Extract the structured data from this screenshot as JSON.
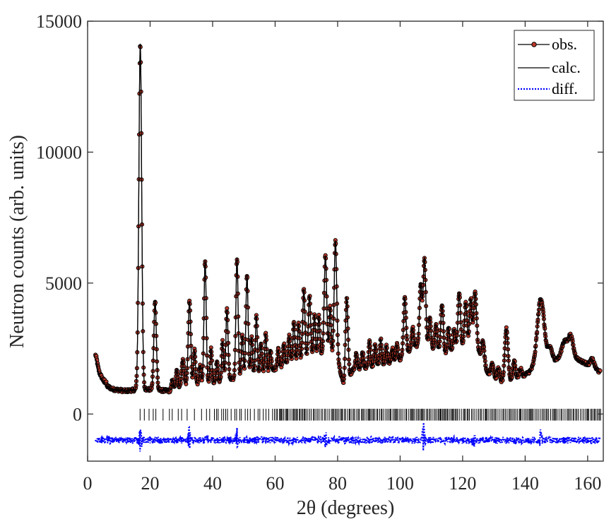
{
  "chart_data": {
    "type": "line",
    "title": "",
    "xlabel": "2θ (degrees)",
    "ylabel": "Neutron counts (arb. units)",
    "xlim": [
      0,
      165
    ],
    "ylim": [
      -1800,
      15000
    ],
    "x_ticks": [
      0,
      20,
      40,
      60,
      80,
      100,
      120,
      140,
      160
    ],
    "x_tick_labels": [
      "0",
      "20",
      "40",
      "60",
      "80",
      "100",
      "120",
      "140",
      "160"
    ],
    "y_ticks": [
      0,
      5000,
      10000,
      15000
    ],
    "y_tick_labels": [
      "0",
      "5000",
      "10000",
      "15000"
    ],
    "grid": false,
    "legend_position": "top-right",
    "background": [
      [
        2.5,
        1700
      ],
      [
        5,
        1150
      ],
      [
        8,
        950
      ],
      [
        12,
        880
      ],
      [
        15,
        920
      ],
      [
        18,
        950
      ],
      [
        22,
        920
      ],
      [
        26,
        880
      ],
      [
        30,
        1050
      ],
      [
        35,
        1150
      ],
      [
        40,
        1200
      ],
      [
        45,
        1300
      ],
      [
        50,
        1400
      ],
      [
        55,
        1500
      ],
      [
        60,
        1700
      ],
      [
        65,
        2000
      ],
      [
        70,
        2100
      ],
      [
        75,
        2300
      ],
      [
        80,
        2100
      ],
      [
        82,
        1050
      ],
      [
        85,
        1700
      ],
      [
        90,
        1800
      ],
      [
        95,
        1900
      ],
      [
        100,
        2100
      ],
      [
        105,
        2600
      ],
      [
        110,
        2500
      ],
      [
        115,
        2300
      ],
      [
        120,
        2600
      ],
      [
        125,
        2400
      ],
      [
        128,
        1600
      ],
      [
        132,
        1200
      ],
      [
        136,
        1300
      ],
      [
        140,
        1500
      ],
      [
        145,
        1900
      ],
      [
        150,
        2100
      ],
      [
        155,
        2200
      ],
      [
        160,
        1900
      ],
      [
        164,
        1600
      ]
    ],
    "peaks": [
      [
        2.6,
        400,
        0.5
      ],
      [
        16.85,
        13200,
        0.45
      ],
      [
        21.6,
        3400,
        0.4
      ],
      [
        27.2,
        400,
        0.3
      ],
      [
        28.6,
        700,
        0.3
      ],
      [
        30.5,
        1000,
        0.4
      ],
      [
        32.6,
        3200,
        0.4
      ],
      [
        34.2,
        1300,
        0.3
      ],
      [
        36.0,
        700,
        0.3
      ],
      [
        37.6,
        4700,
        0.35
      ],
      [
        39.5,
        1300,
        0.3
      ],
      [
        41.4,
        800,
        0.3
      ],
      [
        43.2,
        1500,
        0.3
      ],
      [
        44.6,
        2700,
        0.35
      ],
      [
        47.8,
        4600,
        0.35
      ],
      [
        49.5,
        1600,
        0.3
      ],
      [
        51.0,
        3900,
        0.35
      ],
      [
        52.5,
        1500,
        0.3
      ],
      [
        54.0,
        2300,
        0.3
      ],
      [
        55.5,
        1200,
        0.3
      ],
      [
        57.0,
        1500,
        0.3
      ],
      [
        58.5,
        800,
        0.3
      ],
      [
        61.0,
        700,
        0.3
      ],
      [
        62.8,
        800,
        0.3
      ],
      [
        64.5,
        1000,
        0.3
      ],
      [
        66.0,
        1500,
        0.3
      ],
      [
        67.5,
        1400,
        0.3
      ],
      [
        69.2,
        2700,
        0.35
      ],
      [
        71.0,
        2400,
        0.35
      ],
      [
        72.6,
        1600,
        0.3
      ],
      [
        74.0,
        1500,
        0.3
      ],
      [
        76.1,
        3800,
        0.4
      ],
      [
        77.6,
        1900,
        0.3
      ],
      [
        79.3,
        4500,
        0.4
      ],
      [
        82.9,
        3200,
        0.4
      ],
      [
        86.0,
        600,
        0.3
      ],
      [
        88.0,
        600,
        0.3
      ],
      [
        90.2,
        1000,
        0.3
      ],
      [
        92.0,
        800,
        0.3
      ],
      [
        93.8,
        1000,
        0.3
      ],
      [
        95.6,
        700,
        0.3
      ],
      [
        97.5,
        500,
        0.3
      ],
      [
        99.0,
        600,
        0.3
      ],
      [
        101.5,
        2200,
        0.4
      ],
      [
        104.0,
        800,
        0.35
      ],
      [
        106.6,
        2400,
        0.4
      ],
      [
        107.8,
        3400,
        0.4
      ],
      [
        109.5,
        1200,
        0.35
      ],
      [
        111.5,
        1000,
        0.35
      ],
      [
        113.4,
        1800,
        0.4
      ],
      [
        115.5,
        1000,
        0.35
      ],
      [
        117.3,
        800,
        0.35
      ],
      [
        118.9,
        2100,
        0.4
      ],
      [
        121.0,
        1700,
        0.4
      ],
      [
        122.6,
        1900,
        0.4
      ],
      [
        124.0,
        2200,
        0.45
      ],
      [
        126.5,
        800,
        0.4
      ],
      [
        129.5,
        500,
        0.4
      ],
      [
        131.5,
        500,
        0.4
      ],
      [
        134.0,
        2000,
        0.5
      ],
      [
        136.5,
        700,
        0.4
      ],
      [
        138.5,
        300,
        0.4
      ],
      [
        145.0,
        2500,
        1.1
      ],
      [
        148.0,
        500,
        0.6
      ],
      [
        152.5,
        600,
        0.8
      ],
      [
        154.5,
        800,
        0.8
      ],
      [
        161.5,
        300,
        0.6
      ]
    ],
    "ticks_y_range": [
      -250,
      200
    ],
    "ticks_x_first": 16.8,
    "ticks_x_last": 164.5,
    "diff_offset": -1000,
    "diff_spikes": [
      [
        16.8,
        -500
      ],
      [
        32.5,
        500
      ],
      [
        47.8,
        350
      ],
      [
        76.0,
        300
      ],
      [
        107.5,
        600
      ],
      [
        123.5,
        -250
      ],
      [
        145.0,
        300
      ]
    ],
    "series": [
      {
        "name": "obs.",
        "color": "#000000",
        "marker_color": "#c0392b",
        "line_style": "solid",
        "marker": "circle"
      },
      {
        "name": "calc.",
        "color": "#000000",
        "line_style": "solid",
        "marker": "none"
      },
      {
        "name": "diff.",
        "color": "#0000ff",
        "line_style": "dotted",
        "marker": "none"
      }
    ]
  }
}
